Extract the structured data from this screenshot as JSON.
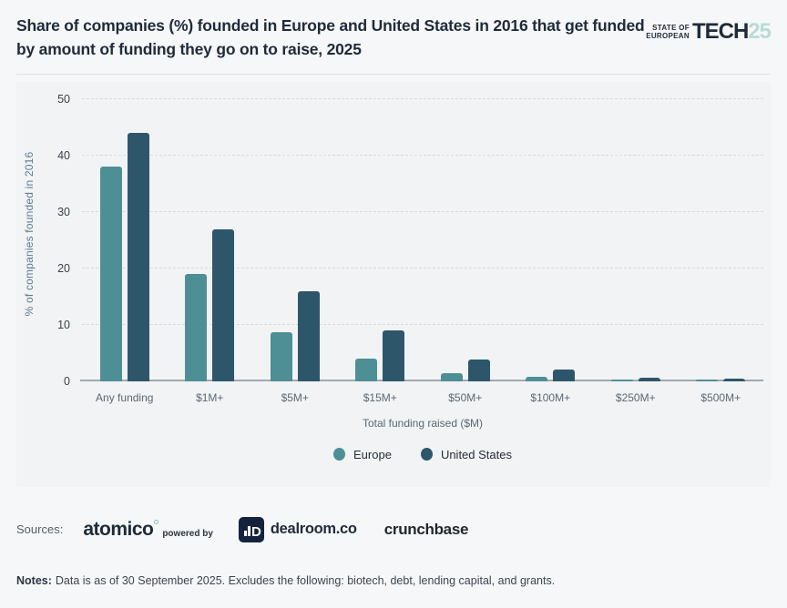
{
  "header": {
    "title": "Share of companies (%) founded in Europe and United States in 2016 that get funded by amount of funding they go on to raise, 2025",
    "logo": {
      "line1": "STATE OF",
      "line2": "EUROPEAN",
      "main": "TECH",
      "year": "25",
      "year_color": "#b9dcd6"
    }
  },
  "chart_data": {
    "type": "bar",
    "title": "Share of companies (%) founded in Europe and United States in 2016 that get funded by amount of funding they go on to raise, 2025",
    "categories": [
      "Any funding",
      "$1M+",
      "$5M+",
      "$15M+",
      "$50M+",
      "$100M+",
      "$250M+",
      "$500M+"
    ],
    "series": [
      {
        "name": "Europe",
        "color": "#4e8f96",
        "values": [
          38,
          19,
          8.7,
          3.9,
          1.3,
          0.7,
          0.3,
          0.2
        ]
      },
      {
        "name": "United States",
        "color": "#2e566a",
        "values": [
          44,
          26.8,
          15.9,
          9.0,
          3.8,
          2.0,
          0.6,
          0.4
        ]
      }
    ],
    "xlabel": "Total funding raised ($M)",
    "ylabel": "% of companies founded in 2016",
    "ylim": [
      0,
      50
    ],
    "yticks": [
      0,
      10,
      20,
      30,
      40,
      50
    ],
    "grid": "horizontal-dashed",
    "legend_position": "bottom"
  },
  "sources": {
    "label": "Sources:",
    "atomico": "atomico",
    "powered_by": "powered by",
    "dealroom_icon_letter": "D",
    "dealroom": "dealroom.co",
    "crunchbase": "crunchbase"
  },
  "notes": {
    "label": "Notes:",
    "text": "Data is as of 30 September 2025. Excludes the following: biotech, debt, lending capital, and grants."
  }
}
